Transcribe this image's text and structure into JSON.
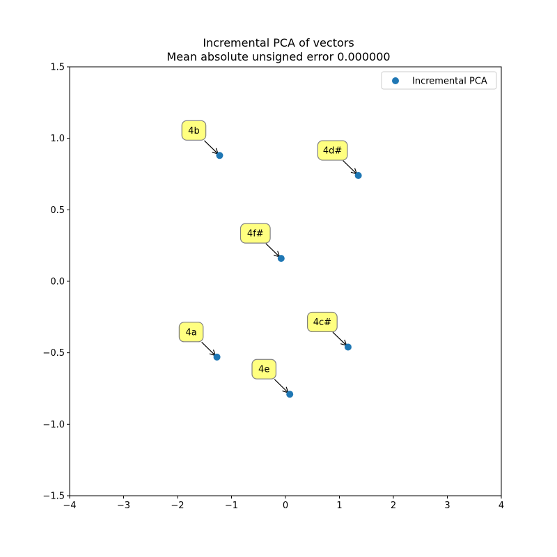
{
  "chart_data": {
    "type": "scatter",
    "title": "Incremental PCA of vectors",
    "subtitle": "Mean absolute unsigned error 0.000000",
    "xlabel": "",
    "ylabel": "",
    "xlim": [
      -4,
      4
    ],
    "ylim": [
      -1.5,
      1.5
    ],
    "x_ticks": [
      -4,
      -3,
      -2,
      -1,
      0,
      1,
      2,
      3,
      4
    ],
    "y_ticks": [
      -1.5,
      -1.0,
      -0.5,
      0.0,
      0.5,
      1.0,
      1.5
    ],
    "x_tick_labels": [
      "−4",
      "−3",
      "−2",
      "−1",
      "0",
      "1",
      "2",
      "3",
      "4"
    ],
    "y_tick_labels": [
      "−1.5",
      "−1.0",
      "−0.5",
      "0.0",
      "0.5",
      "1.0",
      "1.5"
    ],
    "grid": false,
    "legend": {
      "position": "top-right",
      "entries": [
        "Incremental PCA"
      ]
    },
    "series": [
      {
        "name": "Incremental PCA",
        "color": "#1f77b4",
        "points": [
          {
            "label": "4a",
            "x": -1.27,
            "y": -0.53
          },
          {
            "label": "4b",
            "x": -1.22,
            "y": 0.88
          },
          {
            "label": "4c#",
            "x": 1.16,
            "y": -0.46
          },
          {
            "label": "4d#",
            "x": 1.35,
            "y": 0.74
          },
          {
            "label": "4e",
            "x": 0.08,
            "y": -0.79
          },
          {
            "label": "4f#",
            "x": -0.08,
            "y": 0.16
          }
        ]
      }
    ],
    "annotation_style": {
      "box_fill": "#ffff80",
      "box_edge": "#808080",
      "arrow": "#000000"
    }
  }
}
